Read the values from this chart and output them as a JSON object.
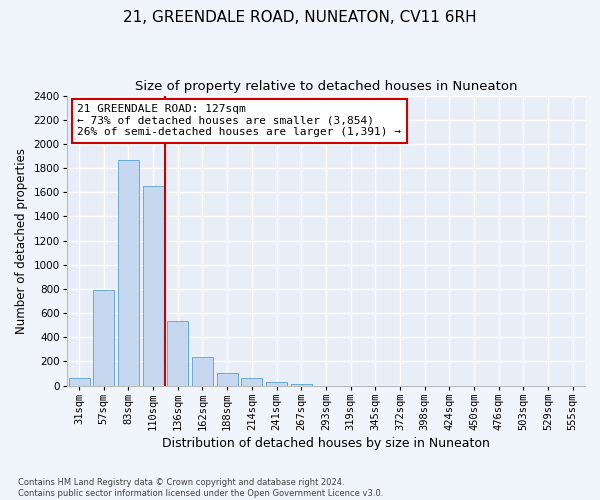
{
  "title1": "21, GREENDALE ROAD, NUNEATON, CV11 6RH",
  "title2": "Size of property relative to detached houses in Nuneaton",
  "xlabel": "Distribution of detached houses by size in Nuneaton",
  "ylabel": "Number of detached properties",
  "categories": [
    "31sqm",
    "57sqm",
    "83sqm",
    "110sqm",
    "136sqm",
    "162sqm",
    "188sqm",
    "214sqm",
    "241sqm",
    "267sqm",
    "293sqm",
    "319sqm",
    "345sqm",
    "372sqm",
    "398sqm",
    "424sqm",
    "450sqm",
    "476sqm",
    "503sqm",
    "529sqm",
    "555sqm"
  ],
  "values": [
    60,
    790,
    1870,
    1650,
    535,
    240,
    108,
    60,
    32,
    15,
    0,
    0,
    0,
    0,
    0,
    0,
    0,
    0,
    0,
    0,
    0
  ],
  "bar_color": "#c5d8f0",
  "bar_edgecolor": "#6aaad4",
  "vline_color": "#cc0000",
  "annotation_line1": "21 GREENDALE ROAD: 127sqm",
  "annotation_line2": "← 73% of detached houses are smaller (3,854)",
  "annotation_line3": "26% of semi-detached houses are larger (1,391) →",
  "annotation_box_color": "#cc0000",
  "ylim": [
    0,
    2400
  ],
  "yticks": [
    0,
    200,
    400,
    600,
    800,
    1000,
    1200,
    1400,
    1600,
    1800,
    2000,
    2200,
    2400
  ],
  "footnote": "Contains HM Land Registry data © Crown copyright and database right 2024.\nContains public sector information licensed under the Open Government Licence v3.0.",
  "bg_color": "#f0f4fb",
  "axes_bg_color": "#e8eef8",
  "grid_color": "#ffffff",
  "title1_fontsize": 11,
  "title2_fontsize": 9.5,
  "xlabel_fontsize": 9,
  "ylabel_fontsize": 8.5,
  "annotation_fontsize": 8,
  "tick_fontsize": 7.5
}
